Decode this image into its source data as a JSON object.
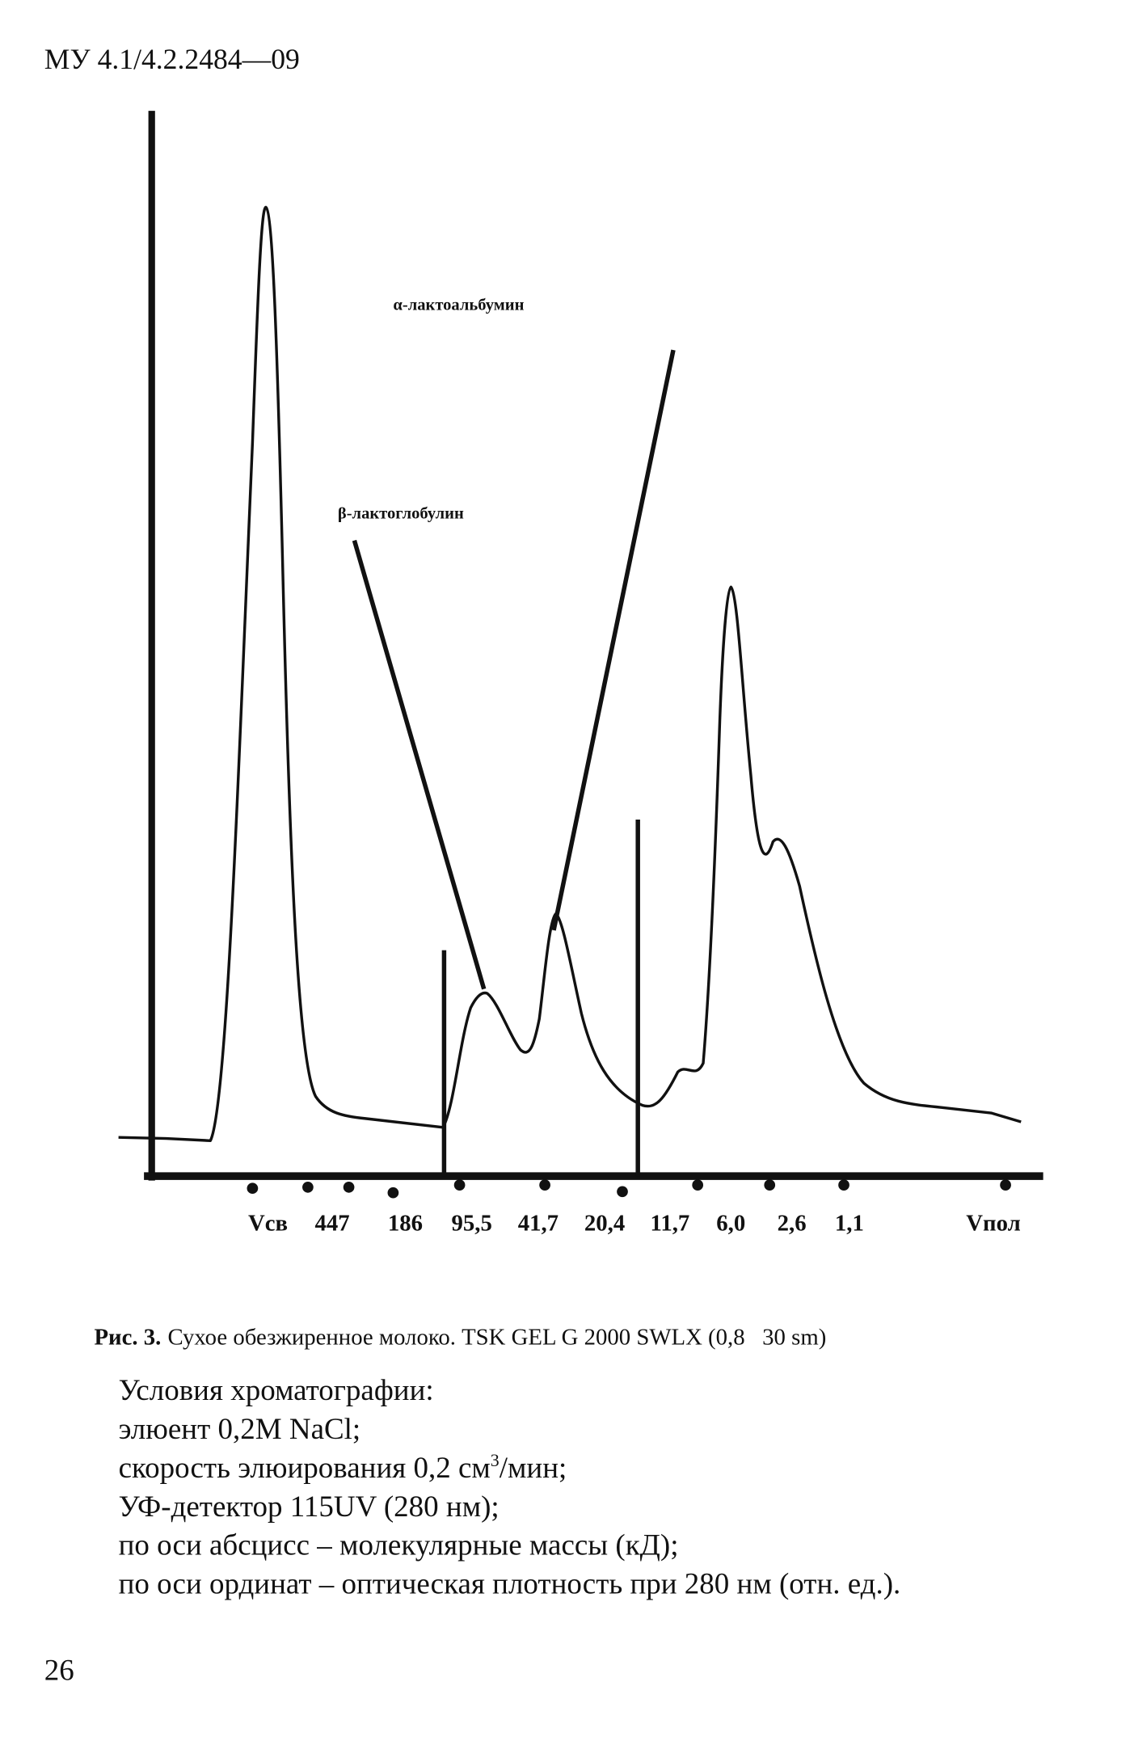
{
  "header": {
    "title": "МУ 4.1/4.2.2484—09"
  },
  "figure": {
    "annotations": [
      "α-лактоальбумин",
      "β-лактоглобулин"
    ],
    "x_labels": [
      "Vсв",
      "447",
      "186",
      "95,5",
      "41,7",
      "20,4",
      "11,7",
      "6,0",
      "2,6",
      "1,1",
      "Vпол"
    ]
  },
  "caption": {
    "label": "Рис. 3.",
    "text": "Сухое обезжиренное молоко. TSK GEL G 2000 SWLX (0,8   30 sm)"
  },
  "conditions": {
    "title": "Условия хроматографии:",
    "line1": "элюент 0,2М NaCl;",
    "line2": {
      "before": "скорость элюирования 0,2 см",
      "sup": "3",
      "after": "/мин;"
    },
    "line3": "УФ-детектор 115UV (280 нм);",
    "line4": "по оси абсцисс – молекулярные массы (кД);",
    "line5": "по оси ординат – оптическая плотность при 280 нм (отн. ед.)."
  },
  "page_number": "26"
}
